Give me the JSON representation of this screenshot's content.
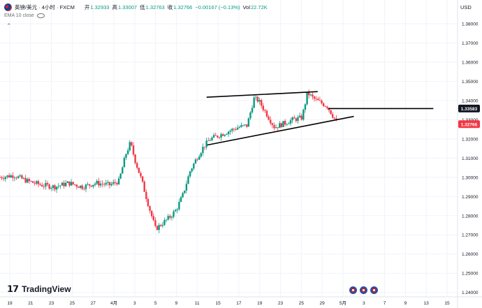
{
  "header": {
    "symbol": "英镑/美元 · 4小时 · FXCM",
    "open_label": "开",
    "open": "1.32933",
    "high_label": "高",
    "high": "1.33007",
    "low_label": "低",
    "low": "1.32763",
    "close_label": "收",
    "close": "1.32766",
    "change": "−0.00167 (−0.13%)",
    "vol_label": "Vol",
    "vol": "22.72K",
    "indicator": "EMA 10 close",
    "currency": "USD"
  },
  "branding": {
    "logo_text": "TradingView"
  },
  "colors": {
    "up": "#089981",
    "down": "#f23645",
    "grid": "#f0f3fa",
    "text": "#131722"
  },
  "chart_data": {
    "type": "candlestick",
    "y_ticks": [
      "1.24000",
      "1.25000",
      "1.26000",
      "1.27000",
      "1.28000",
      "1.29000",
      "1.30000",
      "1.31000",
      "1.32000",
      "1.33000",
      "1.34000",
      "1.35000",
      "1.36000",
      "1.37000",
      "1.38000"
    ],
    "ylim": [
      1.2377,
      1.3858
    ],
    "x_ticks": [
      "19",
      "21",
      "23",
      "25",
      "27",
      "4月",
      "3",
      "5",
      "9",
      "11",
      "15",
      "17",
      "19",
      "23",
      "25",
      "29",
      "5月",
      "3",
      "7",
      "9",
      "13",
      "15"
    ],
    "price_labels": [
      {
        "value": 1.33583,
        "text": "1.33583",
        "style": "dark"
      },
      {
        "value": 1.32766,
        "text": "1.32766",
        "style": "down"
      }
    ],
    "trendlines": [
      {
        "from": [
          0.4515,
          1.3417
        ],
        "to": [
          0.6943,
          1.3446
        ]
      },
      {
        "from": [
          0.4529,
          1.3168
        ],
        "to": [
          0.7732,
          1.3317
        ]
      },
      {
        "from": [
          0.7172,
          1.3358
        ],
        "to": [
          0.9471,
          1.3358
        ]
      }
    ],
    "path": [
      [
        0.0,
        1.3
      ],
      [
        0.03,
        1.301
      ],
      [
        0.06,
        1.298
      ],
      [
        0.09,
        1.296
      ],
      [
        0.12,
        1.295
      ],
      [
        0.15,
        1.297
      ],
      [
        0.18,
        1.295
      ],
      [
        0.21,
        1.297
      ],
      [
        0.24,
        1.296
      ],
      [
        0.26,
        1.298
      ],
      [
        0.275,
        1.312
      ],
      [
        0.285,
        1.318
      ],
      [
        0.295,
        1.309
      ],
      [
        0.31,
        1.298
      ],
      [
        0.325,
        1.285
      ],
      [
        0.34,
        1.273
      ],
      [
        0.355,
        1.276
      ],
      [
        0.37,
        1.279
      ],
      [
        0.385,
        1.283
      ],
      [
        0.4,
        1.291
      ],
      [
        0.415,
        1.303
      ],
      [
        0.43,
        1.31
      ],
      [
        0.445,
        1.316
      ],
      [
        0.46,
        1.32
      ],
      [
        0.48,
        1.322
      ],
      [
        0.5,
        1.324
      ],
      [
        0.52,
        1.326
      ],
      [
        0.54,
        1.327
      ],
      [
        0.555,
        1.341
      ],
      [
        0.565,
        1.34
      ],
      [
        0.58,
        1.334
      ],
      [
        0.6,
        1.326
      ],
      [
        0.62,
        1.328
      ],
      [
        0.64,
        1.33
      ],
      [
        0.66,
        1.331
      ],
      [
        0.672,
        1.344
      ],
      [
        0.685,
        1.341
      ],
      [
        0.7,
        1.339
      ],
      [
        0.715,
        1.337
      ],
      [
        0.725,
        1.333
      ],
      [
        0.735,
        1.329
      ]
    ],
    "xlabel": "",
    "ylabel": ""
  }
}
